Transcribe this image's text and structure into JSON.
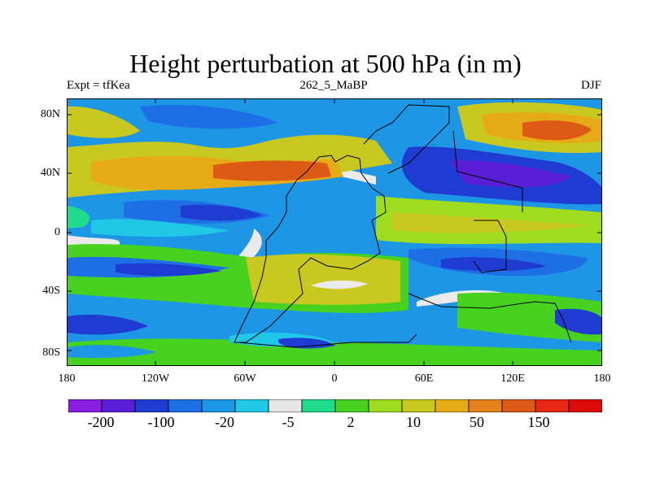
{
  "plot": {
    "title": "Height perturbation at 500 hPa (in m)",
    "left_label": "Expt = tfKea",
    "center_label": "262_5_MaBP",
    "right_label": "DJF"
  },
  "axes": {
    "y_ticks": [
      "80N",
      "40N",
      "0",
      "40S",
      "80S"
    ],
    "x_ticks": [
      "180",
      "120W",
      "60W",
      "0",
      "60E",
      "120E",
      "180"
    ]
  },
  "colorbar": {
    "colors": [
      "#8a1ee0",
      "#5a1ed6",
      "#1e3cd2",
      "#1e6ee6",
      "#1e96e6",
      "#1ec8e6",
      "#e6e6e6",
      "#1edc8c",
      "#46d21e",
      "#a0dc1e",
      "#c8c81e",
      "#e6aa14",
      "#e6821e",
      "#dc5a14",
      "#e62814",
      "#dc0a0a"
    ],
    "labels": [
      "-200",
      "-100",
      "-20",
      "-5",
      "2",
      "10",
      "50",
      "150"
    ]
  },
  "map_data": {
    "projection": "cylindrical equidistant",
    "lon_range": [
      -180,
      180
    ],
    "lat_range": [
      -90,
      90
    ],
    "field": "500 hPa geopotential height perturbation (m)",
    "season": "DJF"
  }
}
